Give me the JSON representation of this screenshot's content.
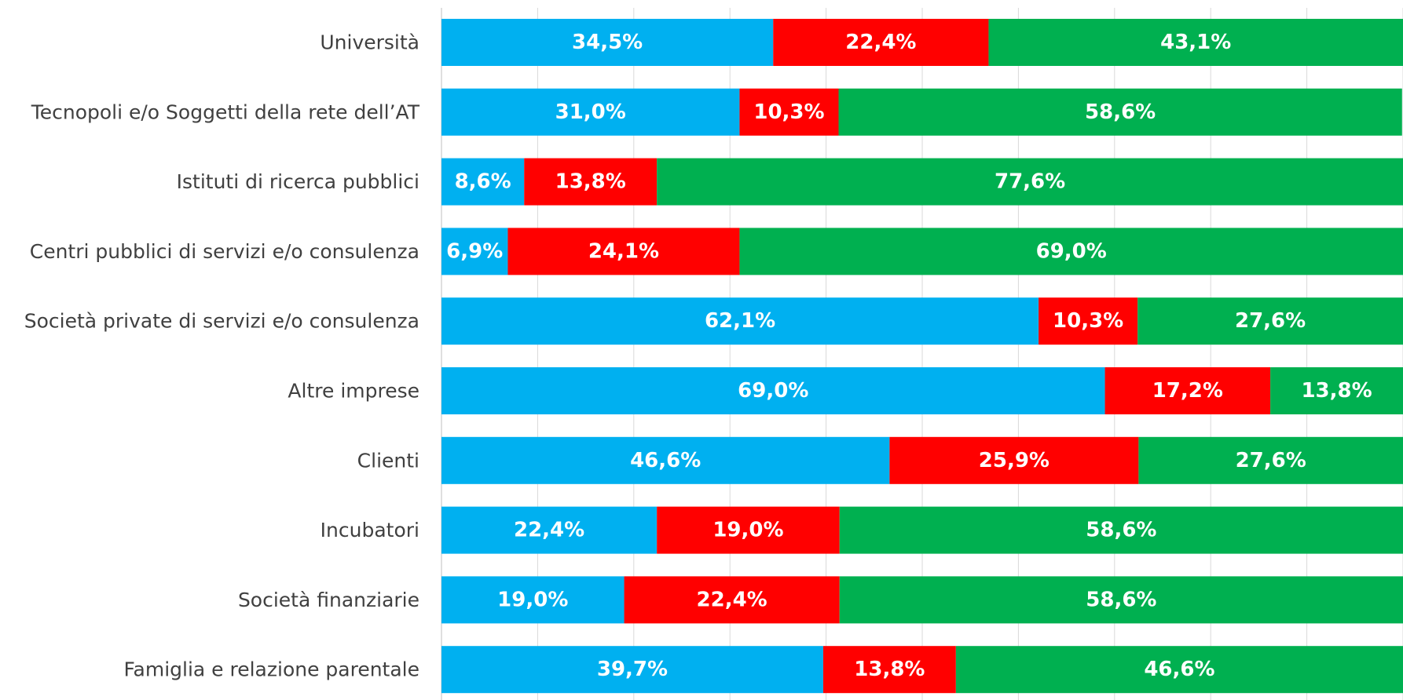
{
  "chart_data": {
    "type": "bar",
    "orientation": "horizontal",
    "stacked": true,
    "normalized_percent": true,
    "title": "",
    "xlabel": "",
    "ylabel": "",
    "xlim": [
      0,
      100
    ],
    "grid": true,
    "legend": "none",
    "categories": [
      "Università",
      "Tecnopoli e/o Soggetti della rete dell’AT",
      "Istituti di ricerca pubblici",
      "Centri pubblici di servizi e/o consulenza",
      "Società private di servizi e/o consulenza",
      "Altre imprese",
      "Clienti",
      "Incubatori",
      "Società finanziarie",
      "Famiglia e relazione parentale"
    ],
    "series": [
      {
        "color": "#00b0f0",
        "values": [
          34.5,
          31.0,
          8.6,
          6.9,
          62.1,
          69.0,
          46.6,
          22.4,
          19.0,
          39.7
        ],
        "labels": [
          "34,5%",
          "31,0%",
          "8,6%",
          "6,9%",
          "62,1%",
          "69,0%",
          "46,6%",
          "22,4%",
          "19,0%",
          "39,7%"
        ]
      },
      {
        "color": "#ff0000",
        "values": [
          22.4,
          10.3,
          13.8,
          24.1,
          10.3,
          17.2,
          25.9,
          19.0,
          22.4,
          13.8
        ],
        "labels": [
          "22,4%",
          "10,3%",
          "13,8%",
          "24,1%",
          "10,3%",
          "17,2%",
          "25,9%",
          "19,0%",
          "22,4%",
          "13,8%"
        ]
      },
      {
        "color": "#00b050",
        "values": [
          43.1,
          58.6,
          77.6,
          69.0,
          27.6,
          13.8,
          27.6,
          58.6,
          58.6,
          46.6
        ],
        "labels": [
          "43,1%",
          "58,6%",
          "77,6%",
          "69,0%",
          "27,6%",
          "13,8%",
          "27,6%",
          "58,6%",
          "58,6%",
          "46,6%"
        ]
      }
    ]
  }
}
